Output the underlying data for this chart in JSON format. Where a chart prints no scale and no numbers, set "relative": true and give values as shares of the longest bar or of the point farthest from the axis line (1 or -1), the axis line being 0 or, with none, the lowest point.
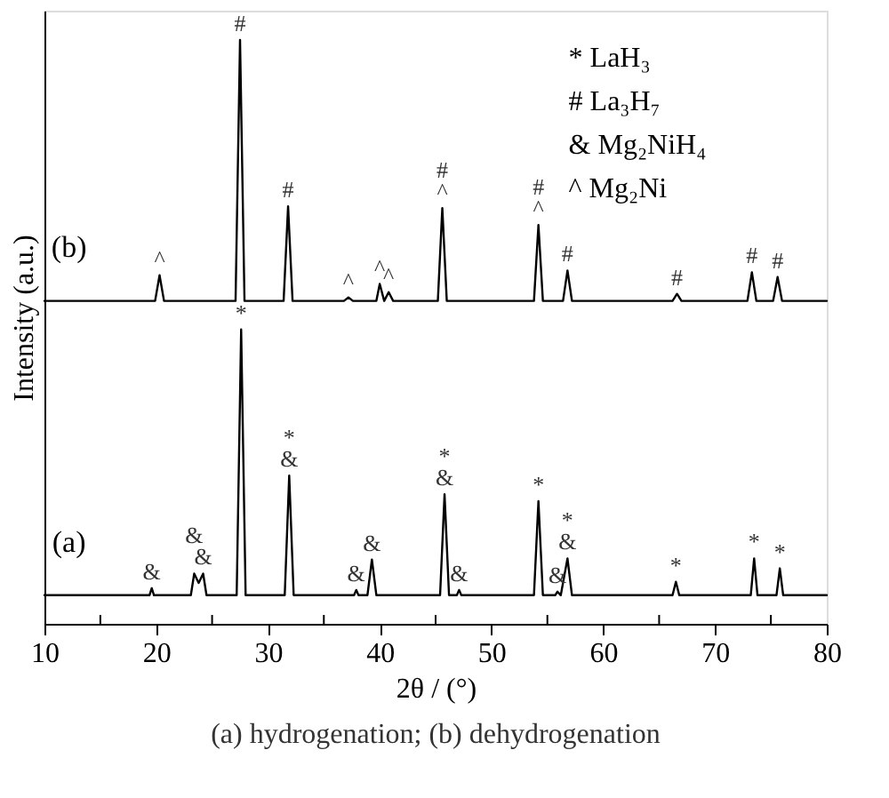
{
  "chart_data": {
    "type": "line",
    "relative": true,
    "title": "(a) hydrogenation; (b) dehydrogenation",
    "xlabel": "2θ / (°)",
    "ylabel": "Intensity (a.u.)",
    "xlim": [
      10,
      80
    ],
    "xticks": [
      10,
      {
        "value": 15,
        "label": null
      },
      20,
      {
        "value": 25,
        "label": null
      },
      30,
      {
        "value": 35,
        "label": null
      },
      40,
      {
        "value": 45,
        "label": null
      },
      50,
      {
        "value": 55,
        "label": null
      },
      60,
      {
        "value": 65,
        "label": null
      },
      70,
      {
        "value": 75,
        "label": null
      },
      80
    ],
    "legend": false,
    "grid": false,
    "marker": "none",
    "line_style": "solid",
    "series": [
      {
        "name": "(b)",
        "color": "#000000",
        "x": [
          10,
          19.9,
          20.3,
          20.7,
          27.1,
          27.5,
          27.9,
          31.4,
          31.8,
          32.2,
          36.8,
          37.2,
          37.6,
          39.7,
          40.0,
          40.4,
          40.8,
          41.2,
          45.2,
          45.6,
          46.0,
          53.8,
          54.2,
          54.6,
          56.4,
          56.8,
          57.2,
          66.2,
          66.6,
          67.0,
          72.9,
          73.3,
          73.7,
          75.2,
          75.6,
          76.0,
          80
        ],
        "values": [
          0.553,
          0.553,
          0.597,
          0.553,
          0.553,
          1.0,
          0.553,
          0.553,
          0.715,
          0.553,
          0.553,
          0.559,
          0.553,
          0.553,
          0.582,
          0.553,
          0.568,
          0.553,
          0.553,
          0.712,
          0.553,
          0.553,
          0.683,
          0.553,
          0.553,
          0.605,
          0.553,
          0.553,
          0.565,
          0.553,
          0.553,
          0.602,
          0.553,
          0.553,
          0.594,
          0.553,
          0.553
        ]
      },
      {
        "name": "(a)",
        "color": "#000000",
        "x": [
          10,
          19.4,
          19.6,
          19.8,
          23.1,
          23.4,
          23.8,
          24.2,
          24.5,
          27.2,
          27.6,
          28.0,
          31.5,
          31.9,
          32.3,
          37.7,
          37.9,
          38.1,
          38.9,
          39.3,
          39.7,
          45.4,
          45.8,
          46.2,
          46.9,
          47.1,
          47.3,
          53.8,
          54.2,
          54.6,
          55.7,
          55.9,
          56.2,
          56.8,
          57.2,
          66.2,
          66.5,
          66.8,
          73.2,
          73.5,
          73.8,
          75.5,
          75.8,
          76.1,
          80
        ],
        "values": [
          0.049,
          0.049,
          0.061,
          0.049,
          0.049,
          0.086,
          0.07,
          0.086,
          0.049,
          0.049,
          0.504,
          0.049,
          0.049,
          0.254,
          0.049,
          0.049,
          0.058,
          0.049,
          0.049,
          0.11,
          0.049,
          0.049,
          0.222,
          0.049,
          0.049,
          0.058,
          0.049,
          0.049,
          0.21,
          0.049,
          0.049,
          0.055,
          0.049,
          0.112,
          0.049,
          0.049,
          0.072,
          0.049,
          0.049,
          0.112,
          0.049,
          0.049,
          0.095,
          0.049,
          0.049
        ]
      }
    ],
    "annotations": [
      "* LaH₃",
      "# La₃H₇",
      "& Mg₂NiH₄",
      "^ Mg₂Ni",
      {
        "text": "^",
        "x": 20.3,
        "y": 0.597
      },
      {
        "text": "#",
        "x": 27.5,
        "y": 1.0
      },
      {
        "text": "#",
        "x": 31.8,
        "y": 0.715
      },
      {
        "text": "^",
        "x": 37.2,
        "y": 0.559
      },
      {
        "text": "^",
        "x": 40.0,
        "y": 0.582
      },
      {
        "text": "^",
        "x": 40.8,
        "y": 0.568
      },
      {
        "text": "^",
        "x": 45.6,
        "y": 0.712
      },
      {
        "text": "#",
        "x": 45.6,
        "y": 0.712
      },
      {
        "text": "^",
        "x": 54.2,
        "y": 0.683
      },
      {
        "text": "#",
        "x": 54.2,
        "y": 0.683
      },
      {
        "text": "#",
        "x": 56.8,
        "y": 0.605
      },
      {
        "text": "#",
        "x": 66.6,
        "y": 0.565
      },
      {
        "text": "#",
        "x": 73.3,
        "y": 0.602
      },
      {
        "text": "#",
        "x": 75.6,
        "y": 0.594
      },
      {
        "text": "&",
        "x": 19.6,
        "y": 0.061
      },
      {
        "text": "&",
        "x": 23.4,
        "y": 0.086
      },
      {
        "text": "&",
        "x": 24.2,
        "y": 0.086
      },
      {
        "text": "*",
        "x": 27.6,
        "y": 0.504
      },
      {
        "text": "&",
        "x": 31.9,
        "y": 0.254
      },
      {
        "text": "*",
        "x": 31.9,
        "y": 0.254
      },
      {
        "text": "&",
        "x": 37.9,
        "y": 0.058
      },
      {
        "text": "&",
        "x": 39.3,
        "y": 0.11
      },
      {
        "text": "&",
        "x": 45.8,
        "y": 0.222
      },
      {
        "text": "*",
        "x": 45.8,
        "y": 0.222
      },
      {
        "text": "&",
        "x": 47.1,
        "y": 0.058
      },
      {
        "text": "*",
        "x": 54.2,
        "y": 0.21
      },
      {
        "text": "&",
        "x": 55.9,
        "y": 0.055
      },
      {
        "text": "&",
        "x": 56.8,
        "y": 0.112
      },
      {
        "text": "*",
        "x": 56.8,
        "y": 0.112
      },
      {
        "text": "*",
        "x": 66.5,
        "y": 0.072
      },
      {
        "text": "*",
        "x": 73.5,
        "y": 0.112
      },
      {
        "text": "*",
        "x": 75.8,
        "y": 0.095
      }
    ]
  }
}
